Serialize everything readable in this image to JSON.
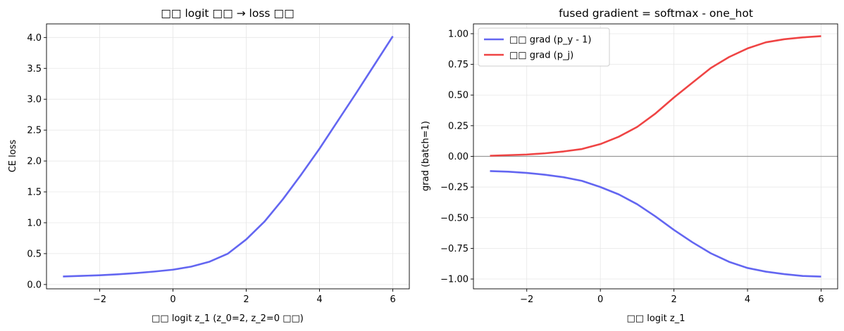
{
  "chart_data": [
    {
      "type": "line",
      "title": "□□ logit □□ → loss □□",
      "xlabel": "□□ logit z_1 (z_0=2, z_2=0 □□)",
      "ylabel": "CE loss",
      "xlim": [
        -3.45,
        6.45
      ],
      "ylim": [
        -0.07,
        4.22
      ],
      "xticks": [
        -2,
        0,
        2,
        4,
        6
      ],
      "xtick_labels": [
        "−2",
        "0",
        "2",
        "4",
        "6"
      ],
      "yticks": [
        0.0,
        0.5,
        1.0,
        1.5,
        2.0,
        2.5,
        3.0,
        3.5,
        4.0
      ],
      "ytick_labels": [
        "0.0",
        "0.5",
        "1.0",
        "1.5",
        "2.0",
        "2.5",
        "3.0",
        "3.5",
        "4.0"
      ],
      "grid": true,
      "series": [
        {
          "color": "#6366f1",
          "x": [
            -3,
            -2.5,
            -2,
            -1.5,
            -1,
            -0.5,
            0,
            0.5,
            1,
            1.5,
            2,
            2.5,
            3,
            3.5,
            4,
            4.5,
            5,
            5.5,
            6
          ],
          "y": [
            0.13,
            0.14,
            0.15,
            0.165,
            0.185,
            0.21,
            0.24,
            0.29,
            0.37,
            0.5,
            0.73,
            1.02,
            1.38,
            1.78,
            2.2,
            2.65,
            3.1,
            3.56,
            4.02
          ]
        }
      ]
    },
    {
      "type": "line",
      "title": "fused gradient = softmax - one_hot",
      "xlabel": "□□ logit z_1",
      "ylabel": "grad (batch=1)",
      "xlim": [
        -3.45,
        6.45
      ],
      "ylim": [
        -1.08,
        1.08
      ],
      "xticks": [
        -2,
        0,
        2,
        4,
        6
      ],
      "xtick_labels": [
        "−2",
        "0",
        "2",
        "4",
        "6"
      ],
      "yticks": [
        -1.0,
        -0.75,
        -0.5,
        -0.25,
        0.0,
        0.25,
        0.5,
        0.75,
        1.0
      ],
      "ytick_labels": [
        "−1.00",
        "−0.75",
        "−0.50",
        "−0.25",
        "0.00",
        "0.25",
        "0.50",
        "0.75",
        "1.00"
      ],
      "grid": true,
      "hline": 0.0,
      "legend_position": "top-left",
      "series": [
        {
          "name": "□□ grad (p_y - 1)",
          "color": "#6366f1",
          "x": [
            -3,
            -2.5,
            -2,
            -1.5,
            -1,
            -0.5,
            0,
            0.5,
            1,
            1.5,
            2,
            2.5,
            3,
            3.5,
            4,
            4.5,
            5,
            5.5,
            6
          ],
          "y": [
            -0.12,
            -0.125,
            -0.135,
            -0.15,
            -0.17,
            -0.2,
            -0.25,
            -0.31,
            -0.39,
            -0.49,
            -0.6,
            -0.7,
            -0.79,
            -0.86,
            -0.91,
            -0.94,
            -0.96,
            -0.975,
            -0.98
          ]
        },
        {
          "name": "□□ grad (p_j)",
          "color": "#ef4444",
          "x": [
            -3,
            -2.5,
            -2,
            -1.5,
            -1,
            -0.5,
            0,
            0.5,
            1,
            1.5,
            2,
            2.5,
            3,
            3.5,
            4,
            4.5,
            5,
            5.5,
            6
          ],
          "y": [
            0.005,
            0.01,
            0.015,
            0.025,
            0.04,
            0.06,
            0.1,
            0.16,
            0.24,
            0.35,
            0.48,
            0.6,
            0.72,
            0.81,
            0.88,
            0.93,
            0.955,
            0.97,
            0.98
          ]
        }
      ]
    }
  ]
}
